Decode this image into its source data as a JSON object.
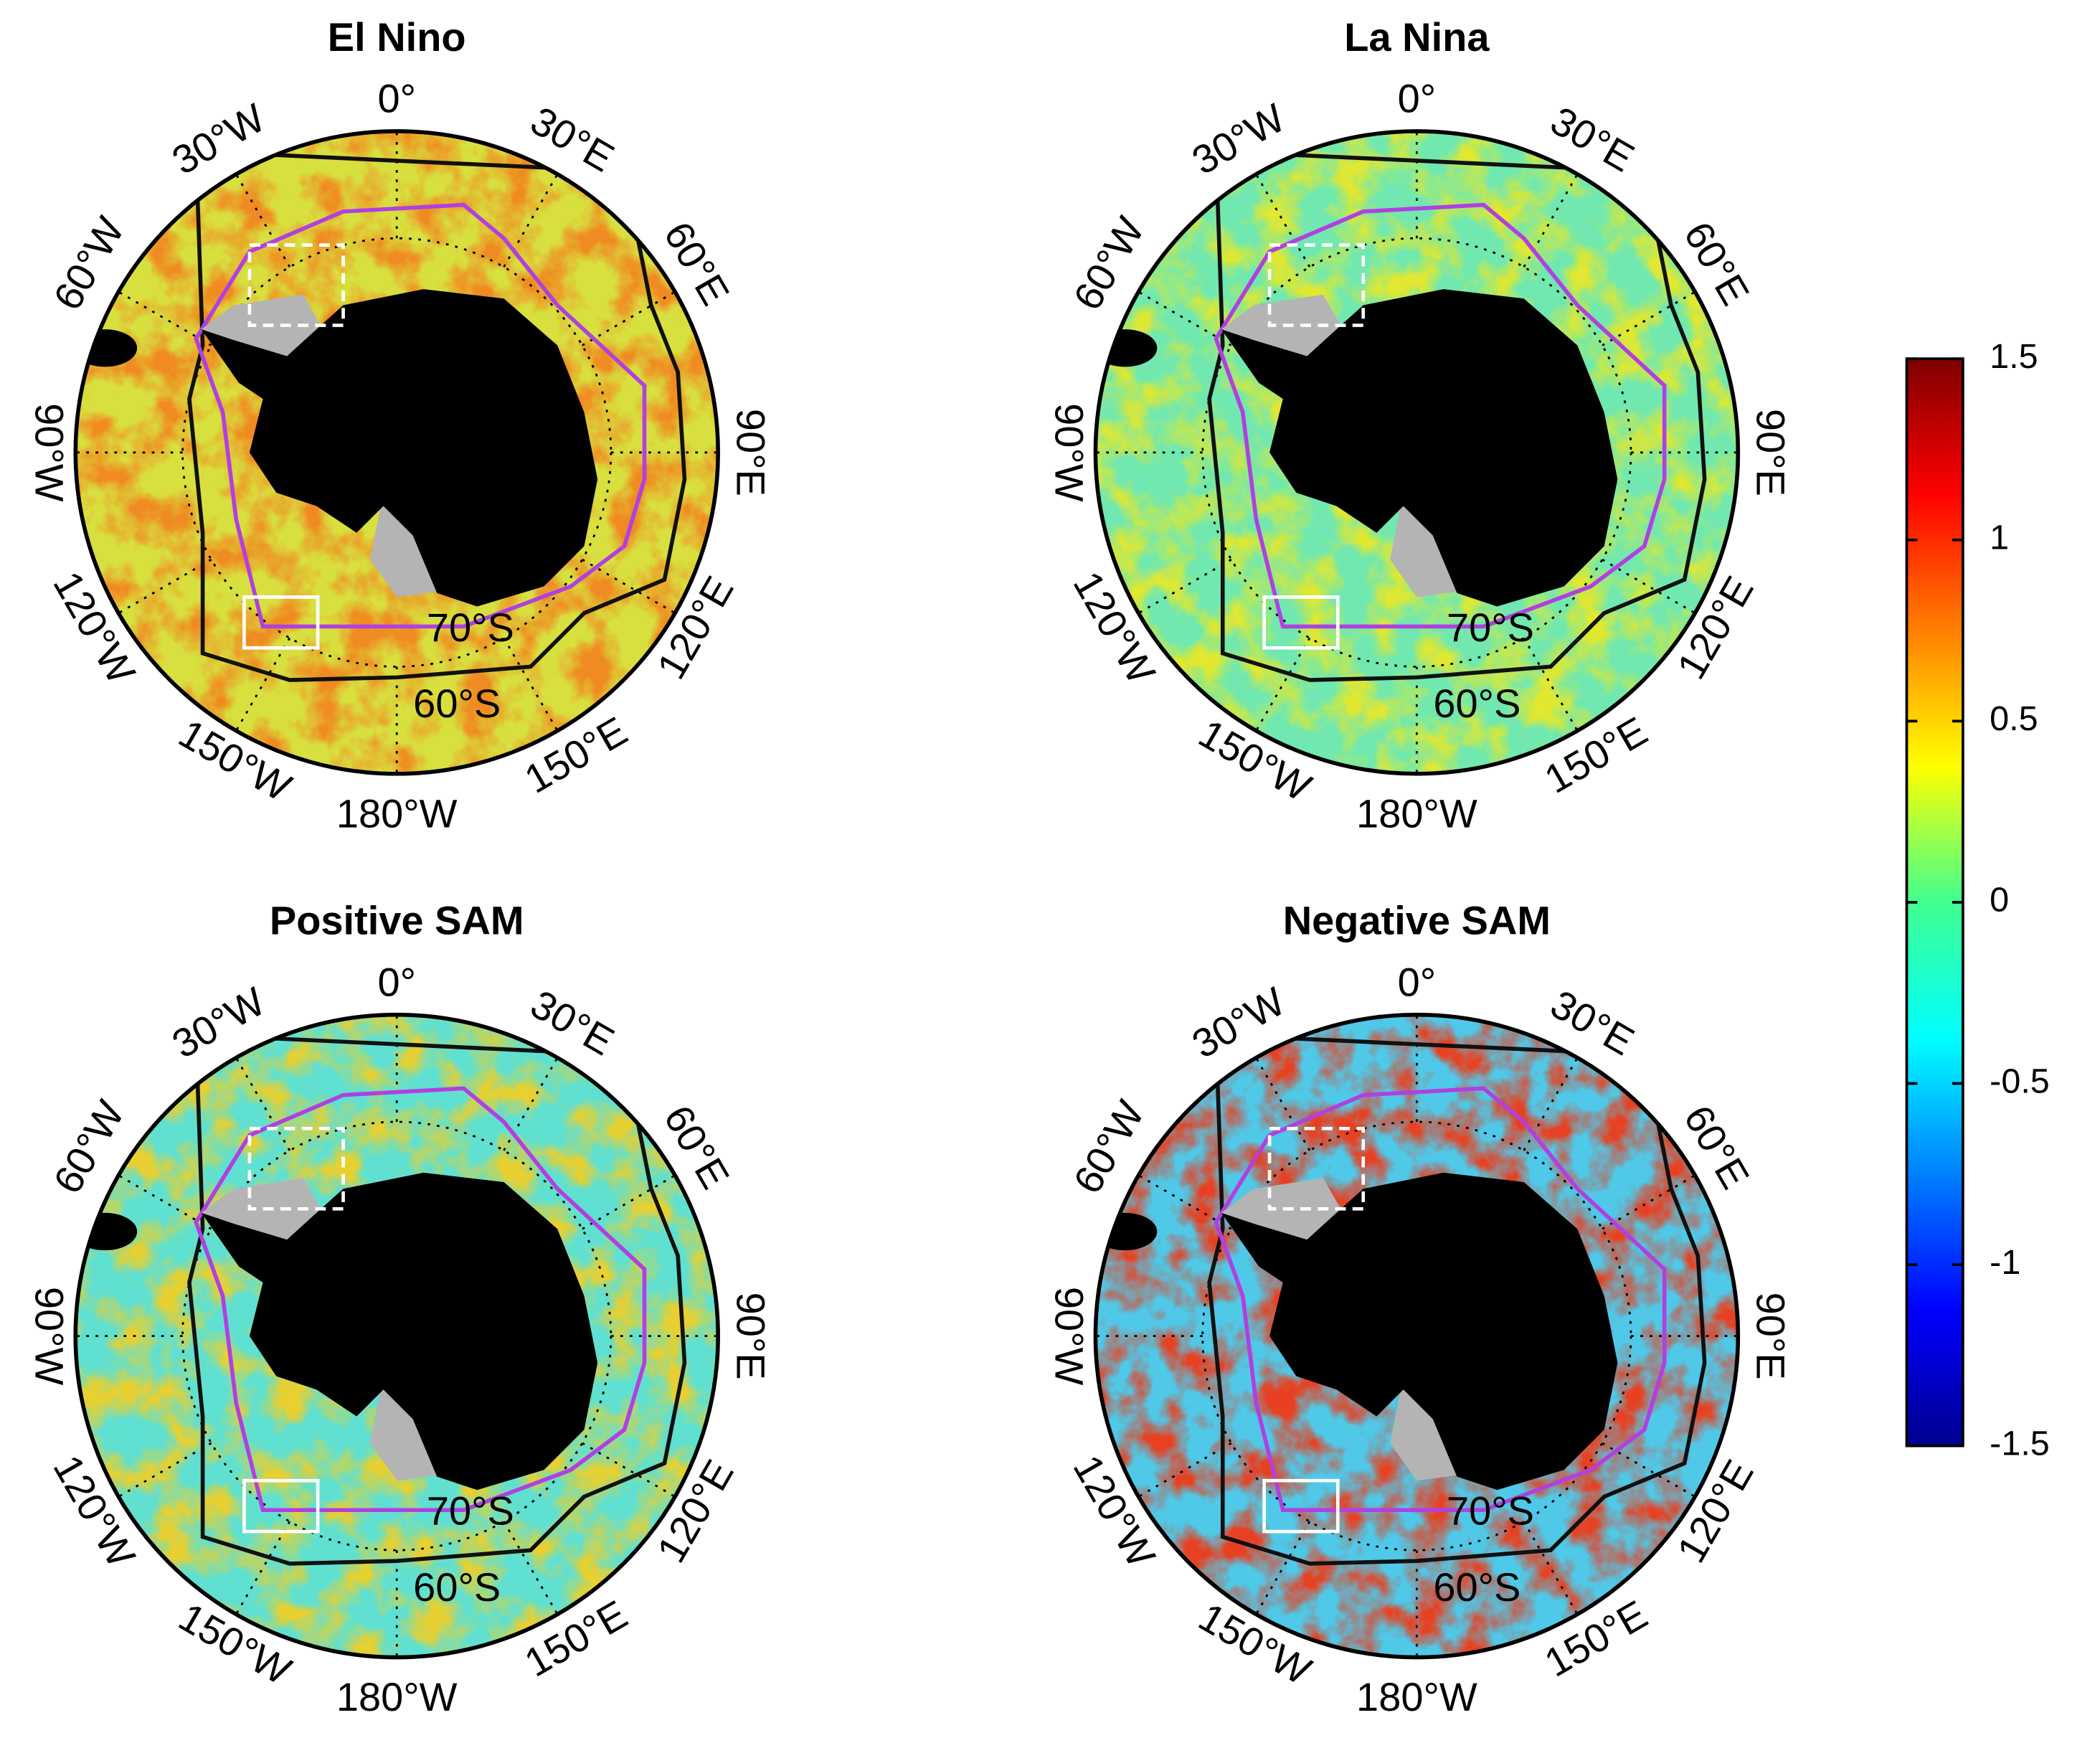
{
  "panels": [
    {
      "title": "El Nino"
    },
    {
      "title": "La Nina"
    },
    {
      "title": "Positive SAM"
    },
    {
      "title": "Negative SAM"
    }
  ],
  "longitude_labels": [
    "0°",
    "30°E",
    "60°E",
    "90°E",
    "120°E",
    "150°E",
    "180°W",
    "150°W",
    "120°W",
    "90°W",
    "60°W",
    "30°W"
  ],
  "latitude_labels": [
    "70°S",
    "60°S"
  ],
  "colorbar": {
    "range": [
      -1.5,
      1.5
    ],
    "ticks": [
      1.5,
      1,
      0.5,
      0,
      -0.5,
      -1,
      -1.5
    ]
  }
}
